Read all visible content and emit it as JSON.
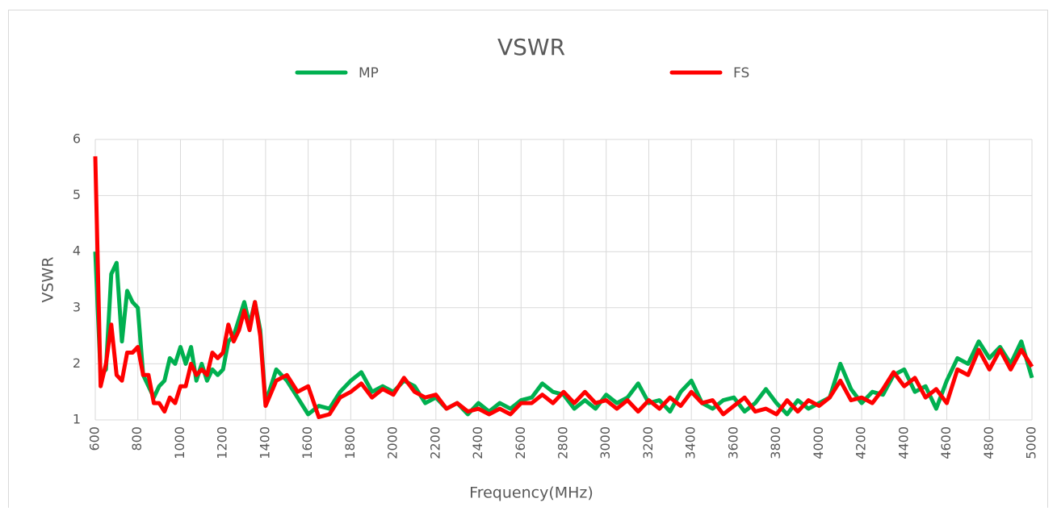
{
  "chart_data": {
    "type": "line",
    "title": "VSWR",
    "xlabel": "Frequency(MHz)",
    "ylabel": "VSWR",
    "legend": "top",
    "grid": true,
    "xlim": [
      600,
      5000
    ],
    "ylim": [
      1,
      6
    ],
    "xticks": [
      600,
      800,
      1000,
      1200,
      1400,
      1600,
      1800,
      2000,
      2200,
      2400,
      2600,
      2800,
      3000,
      3200,
      3400,
      3600,
      3800,
      4000,
      4200,
      4400,
      4600,
      4800,
      5000
    ],
    "yticks": [
      1,
      2,
      3,
      4,
      5,
      6
    ],
    "x": [
      600,
      625,
      650,
      675,
      700,
      725,
      750,
      775,
      800,
      825,
      850,
      875,
      900,
      925,
      950,
      975,
      1000,
      1025,
      1050,
      1075,
      1100,
      1125,
      1150,
      1175,
      1200,
      1225,
      1250,
      1275,
      1300,
      1325,
      1350,
      1375,
      1400,
      1450,
      1500,
      1550,
      1600,
      1650,
      1700,
      1750,
      1800,
      1850,
      1900,
      1950,
      2000,
      2050,
      2100,
      2150,
      2200,
      2250,
      2300,
      2350,
      2400,
      2450,
      2500,
      2550,
      2600,
      2650,
      2700,
      2750,
      2800,
      2850,
      2900,
      2950,
      3000,
      3050,
      3100,
      3150,
      3200,
      3250,
      3300,
      3350,
      3400,
      3450,
      3500,
      3550,
      3600,
      3650,
      3700,
      3750,
      3800,
      3850,
      3900,
      3950,
      4000,
      4050,
      4100,
      4150,
      4200,
      4250,
      4300,
      4350,
      4400,
      4450,
      4500,
      4550,
      4600,
      4650,
      4700,
      4750,
      4800,
      4850,
      4900,
      4950,
      5000
    ],
    "series": [
      {
        "name": "MP",
        "color": "#00b050",
        "values": [
          4.0,
          1.8,
          1.9,
          3.6,
          3.8,
          2.4,
          3.3,
          3.1,
          3.0,
          1.8,
          1.6,
          1.4,
          1.6,
          1.7,
          2.1,
          2.0,
          2.3,
          2.0,
          2.3,
          1.7,
          2.0,
          1.7,
          1.9,
          1.8,
          1.9,
          2.4,
          2.5,
          2.8,
          3.1,
          2.7,
          3.1,
          2.6,
          1.3,
          1.9,
          1.7,
          1.4,
          1.1,
          1.25,
          1.2,
          1.5,
          1.7,
          1.85,
          1.5,
          1.6,
          1.5,
          1.7,
          1.6,
          1.3,
          1.4,
          1.2,
          1.3,
          1.1,
          1.3,
          1.15,
          1.3,
          1.2,
          1.35,
          1.4,
          1.65,
          1.5,
          1.45,
          1.2,
          1.35,
          1.2,
          1.45,
          1.3,
          1.4,
          1.65,
          1.3,
          1.35,
          1.15,
          1.5,
          1.7,
          1.3,
          1.2,
          1.35,
          1.4,
          1.15,
          1.3,
          1.55,
          1.3,
          1.1,
          1.35,
          1.2,
          1.3,
          1.4,
          2.0,
          1.55,
          1.3,
          1.5,
          1.45,
          1.8,
          1.9,
          1.5,
          1.6,
          1.2,
          1.7,
          2.1,
          2.0,
          2.4,
          2.1,
          2.3,
          2.0,
          2.4,
          1.75
        ]
      },
      {
        "name": "FS",
        "color": "#ff0000",
        "values": [
          5.7,
          1.6,
          2.0,
          2.7,
          1.8,
          1.7,
          2.2,
          2.2,
          2.3,
          1.8,
          1.8,
          1.3,
          1.3,
          1.15,
          1.4,
          1.3,
          1.6,
          1.6,
          2.0,
          1.8,
          1.9,
          1.8,
          2.2,
          2.1,
          2.2,
          2.7,
          2.4,
          2.6,
          2.95,
          2.6,
          3.1,
          2.5,
          1.25,
          1.7,
          1.8,
          1.5,
          1.6,
          1.05,
          1.1,
          1.4,
          1.5,
          1.65,
          1.4,
          1.55,
          1.45,
          1.75,
          1.5,
          1.4,
          1.45,
          1.2,
          1.3,
          1.15,
          1.2,
          1.1,
          1.2,
          1.1,
          1.3,
          1.3,
          1.45,
          1.3,
          1.5,
          1.3,
          1.5,
          1.3,
          1.35,
          1.2,
          1.35,
          1.15,
          1.35,
          1.2,
          1.4,
          1.25,
          1.5,
          1.3,
          1.35,
          1.1,
          1.25,
          1.4,
          1.15,
          1.2,
          1.1,
          1.35,
          1.15,
          1.35,
          1.25,
          1.4,
          1.7,
          1.35,
          1.4,
          1.3,
          1.55,
          1.85,
          1.6,
          1.75,
          1.4,
          1.55,
          1.3,
          1.9,
          1.8,
          2.25,
          1.9,
          2.25,
          1.9,
          2.25,
          1.95
        ]
      }
    ]
  }
}
